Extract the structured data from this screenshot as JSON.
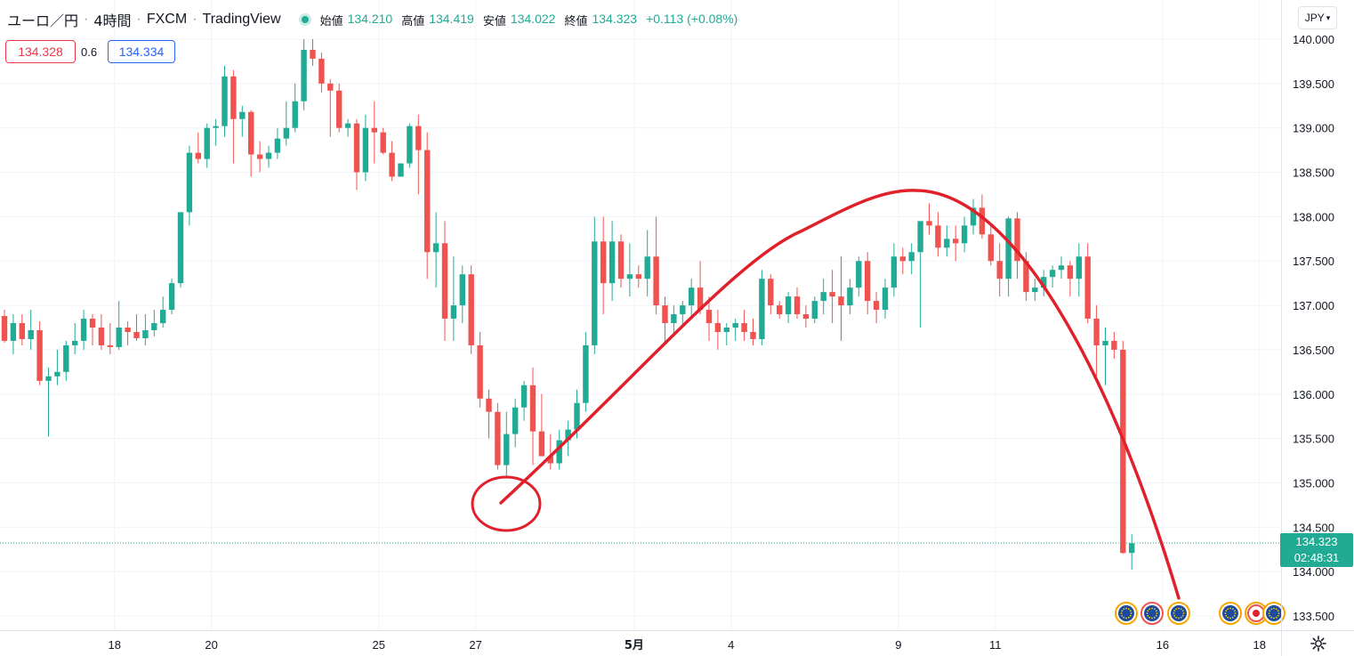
{
  "header": {
    "symbol": "ユーロ／円",
    "timeframe": "4時間",
    "exchange": "FXCM",
    "platform": "TradingView",
    "ohlc": {
      "open_label": "始値",
      "open": "134.210",
      "high_label": "高値",
      "high": "134.419",
      "low_label": "安値",
      "low": "134.022",
      "close_label": "終値",
      "close": "134.323",
      "change": "+0.113 (+0.08%)"
    }
  },
  "quote": {
    "sell": "134.328",
    "spread": "0.6",
    "buy": "134.334"
  },
  "currency_button": "JPY",
  "current_price": {
    "price": "134.323",
    "countdown": "02:48:31"
  },
  "colors": {
    "up": "#22ab94",
    "down": "#ef5350",
    "annotation": "#e0202a",
    "grid": "#f0f3fa"
  },
  "chart_data": {
    "type": "candlestick",
    "y_axis": {
      "ticks": [
        133.5,
        134.0,
        134.5,
        135.0,
        135.5,
        136.0,
        136.5,
        137.0,
        137.5,
        138.0,
        138.5,
        139.0,
        139.5,
        140.0
      ],
      "tick_labels": [
        "133.500",
        "134.000",
        "134.500",
        "135.000",
        "135.500",
        "136.000",
        "136.500",
        "137.000",
        "137.500",
        "138.000",
        "138.500",
        "139.000",
        "139.500",
        "140.000"
      ],
      "ylim": [
        133.24,
        140.22
      ],
      "side": "right"
    },
    "x_axis": {
      "tick_labels": [
        "18",
        "20",
        "25",
        "27",
        "5月",
        "4",
        "9",
        "11",
        "16",
        "18"
      ],
      "tick_bar_index": [
        12.5,
        23.5,
        42.5,
        53.5,
        71.5,
        82.5,
        101.5,
        112.5,
        131.5,
        142.5
      ]
    },
    "current_price_line": 134.323,
    "ohlc_bars": [
      [
        136.88,
        136.95,
        136.58,
        136.6
      ],
      [
        136.6,
        136.9,
        136.45,
        136.8
      ],
      [
        136.8,
        136.9,
        136.55,
        136.62
      ],
      [
        136.62,
        136.95,
        136.5,
        136.72
      ],
      [
        136.72,
        136.82,
        136.1,
        136.15
      ],
      [
        136.15,
        136.3,
        135.52,
        136.2
      ],
      [
        136.2,
        136.5,
        136.1,
        136.25
      ],
      [
        136.25,
        136.6,
        136.15,
        136.55
      ],
      [
        136.55,
        136.8,
        136.45,
        136.6
      ],
      [
        136.6,
        136.95,
        136.5,
        136.85
      ],
      [
        136.85,
        136.9,
        136.55,
        136.75
      ],
      [
        136.75,
        136.9,
        136.5,
        136.55
      ],
      [
        136.55,
        136.8,
        136.45,
        136.53
      ],
      [
        136.53,
        137.05,
        136.5,
        136.75
      ],
      [
        136.75,
        136.82,
        136.55,
        136.7
      ],
      [
        136.7,
        136.9,
        136.6,
        136.63
      ],
      [
        136.63,
        136.9,
        136.55,
        136.72
      ],
      [
        136.72,
        136.95,
        136.65,
        136.8
      ],
      [
        136.8,
        137.1,
        136.75,
        136.95
      ],
      [
        136.95,
        137.3,
        136.9,
        137.25
      ],
      [
        137.25,
        138.0,
        137.2,
        138.05
      ],
      [
        138.05,
        138.8,
        137.9,
        138.72
      ],
      [
        138.72,
        138.95,
        138.6,
        138.65
      ],
      [
        138.65,
        139.05,
        138.55,
        139.0
      ],
      [
        139.0,
        139.1,
        138.8,
        139.02
      ],
      [
        139.02,
        139.7,
        138.9,
        139.58
      ],
      [
        139.58,
        139.65,
        138.6,
        139.1
      ],
      [
        139.1,
        139.25,
        138.9,
        139.18
      ],
      [
        139.18,
        139.2,
        138.45,
        138.7
      ],
      [
        138.7,
        138.85,
        138.5,
        138.65
      ],
      [
        138.65,
        138.8,
        138.55,
        138.72
      ],
      [
        138.72,
        139.0,
        138.65,
        138.88
      ],
      [
        138.88,
        139.3,
        138.8,
        139.0
      ],
      [
        139.0,
        139.5,
        138.95,
        139.3
      ],
      [
        139.3,
        140.0,
        139.2,
        139.88
      ],
      [
        139.88,
        140.0,
        139.7,
        139.78
      ],
      [
        139.78,
        139.85,
        139.4,
        139.5
      ],
      [
        139.5,
        139.55,
        138.9,
        139.42
      ],
      [
        139.42,
        139.5,
        138.95,
        139.0
      ],
      [
        139.0,
        139.1,
        138.9,
        139.05
      ],
      [
        139.05,
        139.1,
        138.3,
        138.5
      ],
      [
        138.5,
        139.15,
        138.4,
        139.0
      ],
      [
        139.0,
        139.3,
        138.6,
        138.95
      ],
      [
        138.95,
        139.0,
        138.7,
        138.72
      ],
      [
        138.72,
        138.85,
        138.4,
        138.45
      ],
      [
        138.45,
        138.5,
        138.8,
        138.6
      ],
      [
        138.6,
        139.05,
        138.55,
        139.02
      ],
      [
        139.02,
        139.15,
        138.25,
        138.75
      ],
      [
        138.75,
        138.95,
        137.3,
        137.6
      ],
      [
        137.6,
        138.05,
        137.2,
        137.7
      ],
      [
        137.7,
        137.95,
        136.6,
        136.85
      ],
      [
        136.85,
        137.55,
        136.6,
        137.0
      ],
      [
        137.0,
        137.45,
        136.8,
        137.35
      ],
      [
        137.35,
        137.45,
        136.45,
        136.55
      ],
      [
        136.55,
        136.7,
        135.85,
        135.95
      ],
      [
        135.95,
        136.05,
        135.5,
        135.8
      ],
      [
        135.8,
        135.9,
        135.15,
        135.2
      ],
      [
        135.2,
        135.8,
        135.05,
        135.55
      ],
      [
        135.55,
        135.95,
        135.4,
        135.85
      ],
      [
        135.85,
        136.15,
        135.7,
        136.1
      ],
      [
        136.1,
        136.3,
        135.2,
        135.58
      ],
      [
        135.58,
        136.0,
        135.3,
        135.3
      ],
      [
        135.3,
        135.55,
        135.15,
        135.22
      ],
      [
        135.22,
        135.6,
        135.15,
        135.48
      ],
      [
        135.48,
        135.7,
        135.3,
        135.6
      ],
      [
        135.6,
        136.05,
        135.5,
        135.9
      ],
      [
        135.9,
        136.7,
        135.8,
        136.55
      ],
      [
        136.55,
        138.0,
        136.45,
        137.72
      ],
      [
        137.72,
        138.0,
        136.9,
        137.25
      ],
      [
        137.25,
        137.95,
        137.05,
        137.72
      ],
      [
        137.72,
        137.8,
        137.2,
        137.3
      ],
      [
        137.3,
        137.7,
        137.1,
        137.35
      ],
      [
        137.35,
        137.45,
        137.2,
        137.3
      ],
      [
        137.3,
        137.85,
        137.1,
        137.55
      ],
      [
        137.55,
        138.0,
        136.9,
        137.0
      ],
      [
        137.0,
        137.1,
        136.55,
        136.8
      ],
      [
        136.8,
        137.0,
        136.65,
        136.9
      ],
      [
        136.9,
        137.05,
        136.75,
        137.0
      ],
      [
        137.0,
        137.3,
        136.85,
        137.2
      ],
      [
        137.2,
        137.5,
        136.9,
        136.95
      ],
      [
        136.95,
        137.1,
        136.6,
        136.8
      ],
      [
        136.8,
        136.95,
        136.5,
        136.7
      ],
      [
        136.7,
        136.8,
        136.55,
        136.75
      ],
      [
        136.75,
        136.85,
        136.6,
        136.8
      ],
      [
        136.8,
        136.95,
        136.6,
        136.7
      ],
      [
        136.7,
        136.85,
        136.55,
        136.62
      ],
      [
        136.62,
        137.4,
        136.55,
        137.3
      ],
      [
        137.3,
        137.35,
        136.9,
        137.0
      ],
      [
        137.0,
        137.05,
        136.85,
        136.9
      ],
      [
        136.9,
        137.15,
        136.8,
        137.1
      ],
      [
        137.1,
        137.2,
        136.85,
        136.9
      ],
      [
        136.9,
        137.0,
        136.75,
        136.85
      ],
      [
        136.85,
        137.1,
        136.8,
        137.05
      ],
      [
        137.05,
        137.3,
        136.9,
        137.15
      ],
      [
        137.15,
        137.4,
        136.8,
        137.1
      ],
      [
        137.1,
        137.55,
        136.6,
        137.0
      ],
      [
        137.0,
        137.3,
        136.9,
        137.2
      ],
      [
        137.2,
        137.55,
        137.1,
        137.5
      ],
      [
        137.5,
        137.6,
        136.9,
        137.05
      ],
      [
        137.05,
        137.15,
        136.8,
        136.95
      ],
      [
        136.95,
        137.3,
        136.85,
        137.2
      ],
      [
        137.2,
        137.7,
        137.1,
        137.55
      ],
      [
        137.55,
        137.65,
        137.35,
        137.5
      ],
      [
        137.5,
        137.7,
        137.35,
        137.6
      ],
      [
        137.6,
        137.95,
        136.75,
        137.95
      ],
      [
        137.95,
        138.15,
        137.8,
        137.9
      ],
      [
        137.9,
        138.05,
        137.55,
        137.65
      ],
      [
        137.65,
        137.9,
        137.55,
        137.75
      ],
      [
        137.75,
        137.9,
        137.5,
        137.7
      ],
      [
        137.7,
        138.0,
        137.6,
        137.9
      ],
      [
        137.9,
        138.2,
        137.8,
        138.1
      ],
      [
        138.1,
        138.25,
        137.75,
        137.8
      ],
      [
        137.8,
        137.9,
        137.45,
        137.5
      ],
      [
        137.5,
        137.7,
        137.1,
        137.3
      ],
      [
        137.3,
        138.0,
        137.1,
        137.98
      ],
      [
        137.98,
        138.05,
        137.3,
        137.5
      ],
      [
        137.5,
        137.6,
        137.05,
        137.15
      ],
      [
        137.15,
        137.3,
        137.05,
        137.2
      ],
      [
        137.2,
        137.4,
        137.1,
        137.32
      ],
      [
        137.32,
        137.45,
        137.2,
        137.4
      ],
      [
        137.4,
        137.55,
        137.3,
        137.45
      ],
      [
        137.45,
        137.5,
        137.1,
        137.3
      ],
      [
        137.3,
        137.7,
        137.1,
        137.55
      ],
      [
        137.55,
        137.7,
        136.8,
        136.85
      ],
      [
        136.85,
        137.0,
        136.2,
        136.55
      ],
      [
        136.55,
        136.75,
        136.1,
        136.6
      ],
      [
        136.6,
        136.7,
        136.4,
        136.5
      ],
      [
        136.5,
        136.6,
        134.2,
        134.21
      ],
      [
        134.21,
        134.42,
        134.02,
        134.32
      ]
    ],
    "annotations": [
      {
        "type": "ellipse",
        "center": [
          "2023-04-27 16:00",
          134.78
        ]
      },
      {
        "type": "arc",
        "peak": [
          "2023-05-09",
          138.3
        ],
        "start": [
          "2023-04-27 16:00",
          134.8
        ],
        "end": [
          "2023-05-16",
          133.7
        ]
      }
    ],
    "event_markers": [
      "eu-flag-icon",
      "eu-flag-icon",
      "eu-flag-icon",
      "eu-flag-icon",
      "record-icon",
      "eu-flag-icon"
    ]
  }
}
